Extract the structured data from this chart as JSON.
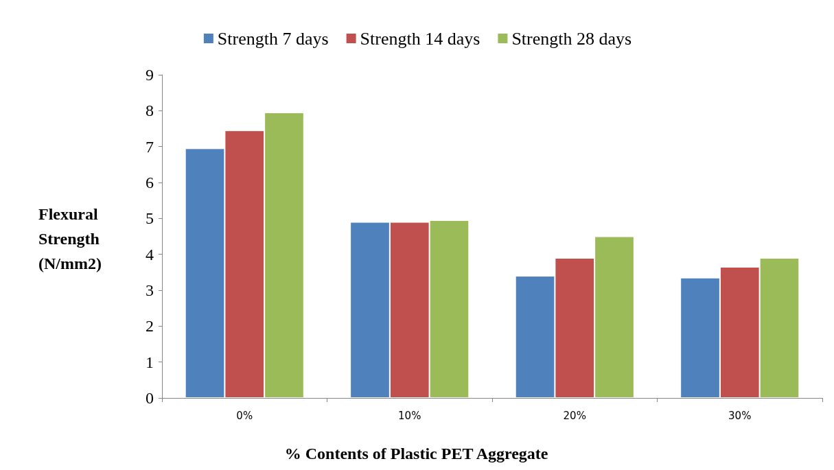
{
  "chart_data": {
    "type": "bar",
    "xlabel": "% Contents of Plastic PET Aggregate",
    "ylabel": "Flexural\nStrength\n(N/mm2)",
    "categories": [
      "0%",
      "10%",
      "20%",
      "30%"
    ],
    "series": [
      {
        "name": "Strength 7 days",
        "color": "#4f81bd",
        "values": [
          6.95,
          4.9,
          3.4,
          3.35
        ]
      },
      {
        "name": "Strength 14 days",
        "color": "#c0504d",
        "values": [
          7.45,
          4.9,
          3.9,
          3.65
        ]
      },
      {
        "name": "Strength 28 days",
        "color": "#9bbb59",
        "values": [
          7.95,
          4.95,
          4.5,
          3.9
        ]
      }
    ],
    "ylim": [
      0,
      9
    ],
    "yticks": [
      0,
      1,
      2,
      3,
      4,
      5,
      6,
      7,
      8,
      9
    ],
    "grid": false,
    "legend": "top"
  }
}
